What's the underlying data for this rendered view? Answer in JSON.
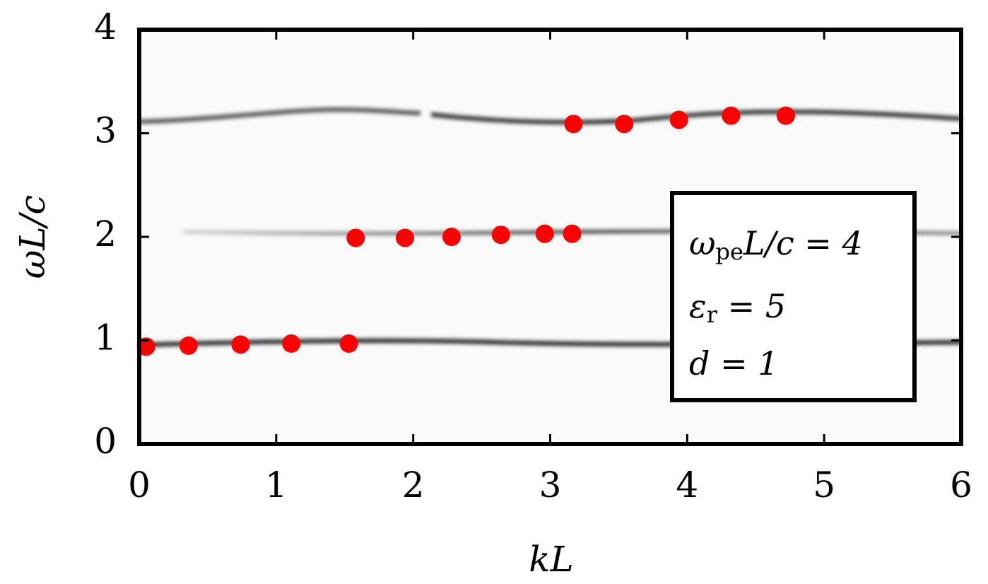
{
  "chart_data": {
    "type": "scatter",
    "x_label": "kL",
    "y_label": "ωL/c",
    "x": [
      0.05,
      0.36,
      0.74,
      1.11,
      1.53,
      1.58,
      1.94,
      2.28,
      2.64,
      2.96,
      3.16,
      3.17,
      3.54,
      3.94,
      4.32,
      4.72
    ],
    "y": [
      0.94,
      0.95,
      0.96,
      0.97,
      0.97,
      1.99,
      1.99,
      2.0,
      2.02,
      2.03,
      2.03,
      3.09,
      3.09,
      3.13,
      3.17,
      3.17
    ],
    "color": "#ff0000",
    "xlim": [
      0,
      6
    ],
    "xticks": [
      0,
      1,
      2,
      3,
      4,
      5,
      6
    ],
    "ylim": [
      0,
      4
    ],
    "yticks": [
      0,
      1,
      2,
      3,
      4
    ],
    "annotations": [
      [
        "ω",
        "pe",
        "L/c = 4"
      ],
      [
        "ε",
        "r",
        " = 5"
      ],
      [
        "d = 1"
      ]
    ]
  }
}
